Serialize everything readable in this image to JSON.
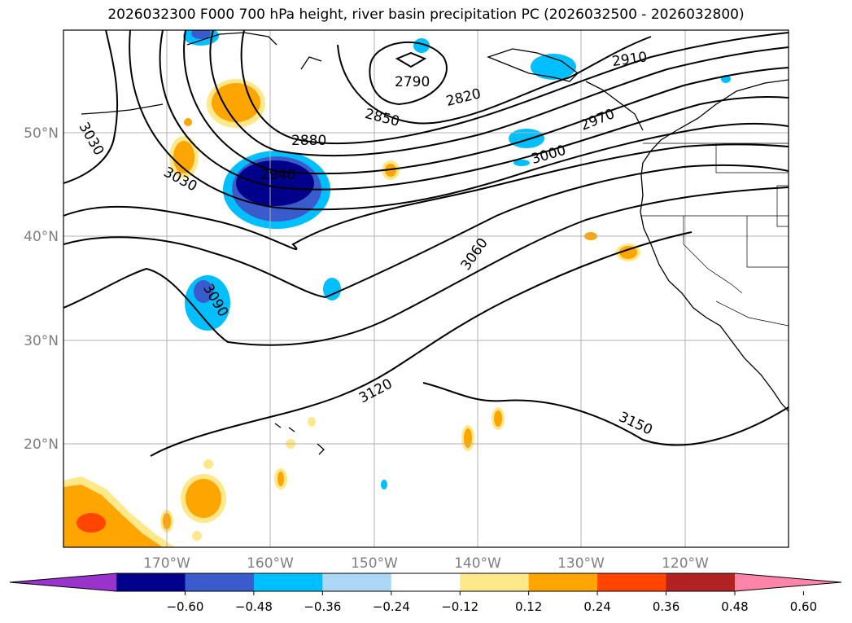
{
  "title": "2026032300 F000 700 hPa height, river basin precipitation PC (2026032500 - 2026032800)",
  "map": {
    "lat_ticks": [
      "50°N",
      "40°N",
      "30°N",
      "20°N"
    ],
    "lon_ticks": [
      "170°W",
      "160°W",
      "150°W",
      "140°W",
      "130°W",
      "120°W"
    ],
    "contour_labels": [
      "2790",
      "2820",
      "2850",
      "2880",
      "2910",
      "2940",
      "2970",
      "3000",
      "3030",
      "3030",
      "3060",
      "3090",
      "3120",
      "3150"
    ],
    "gridline_color": "#b0b0b0"
  },
  "colorbar": {
    "ticks": [
      "−0.60",
      "−0.48",
      "−0.36",
      "−0.24",
      "−0.12",
      "0.12",
      "0.24",
      "0.36",
      "0.48",
      "0.60"
    ],
    "colors": [
      "#9933cc",
      "#00008b",
      "#3a5bcc",
      "#00bfff",
      "#add8f5",
      "#ffffff",
      "#ffe88a",
      "#ffa500",
      "#ff4500",
      "#b22222",
      "#ff85a8"
    ]
  }
}
